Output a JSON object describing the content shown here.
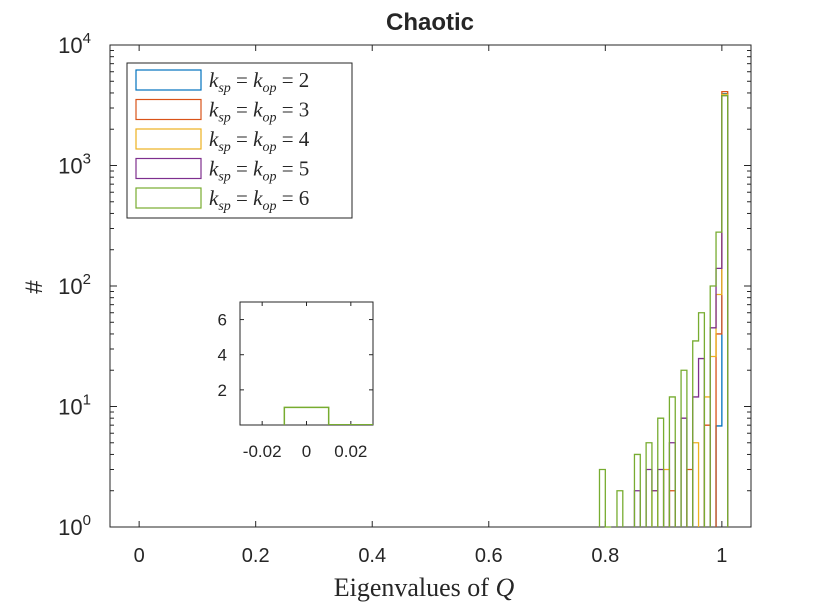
{
  "chart_data": {
    "type": "histogram-stairs",
    "title": "Chaotic",
    "xlabel_text": "Eigenvalues of",
    "xlabel_var": "Q",
    "ylabel": "#",
    "yscale": "log",
    "xlim": [
      -0.05,
      1.05
    ],
    "ylim": [
      1,
      10000
    ],
    "xticks": [
      0,
      0.2,
      0.4,
      0.6,
      0.8,
      1
    ],
    "xtick_labels": [
      "0",
      "0.2",
      "0.4",
      "0.6",
      "0.8",
      "1"
    ],
    "ytick_labels": [
      {
        "base": "10",
        "exp": "0"
      },
      {
        "base": "10",
        "exp": "1"
      },
      {
        "base": "10",
        "exp": "2"
      },
      {
        "base": "10",
        "exp": "3"
      },
      {
        "base": "10",
        "exp": "4"
      }
    ],
    "legend_location": "top-left",
    "series": [
      {
        "name": "k_sp = k_op = 2",
        "lhs": "k",
        "sub1": "sp",
        "sub2": "op",
        "val": "2",
        "color": "#0072BD",
        "steps": [
          [
            0.99,
            6.9
          ],
          [
            1.0,
            3950
          ]
        ]
      },
      {
        "name": "k_sp = k_op = 3",
        "lhs": "k",
        "sub1": "sp",
        "sub2": "op",
        "val": "3",
        "color": "#D95319",
        "steps": [
          [
            0.91,
            2
          ],
          [
            0.94,
            3
          ],
          [
            0.97,
            7
          ],
          [
            0.99,
            40
          ],
          [
            1.0,
            4100
          ]
        ]
      },
      {
        "name": "k_sp = k_op = 4",
        "lhs": "k",
        "sub1": "sp",
        "sub2": "op",
        "val": "4",
        "color": "#EDB120",
        "steps": [
          [
            0.88,
            2
          ],
          [
            0.9,
            3
          ],
          [
            0.95,
            5
          ],
          [
            0.97,
            12
          ],
          [
            0.98,
            26
          ],
          [
            0.99,
            85
          ],
          [
            1.0,
            3900
          ]
        ]
      },
      {
        "name": "k_sp = k_op = 5",
        "lhs": "k",
        "sub1": "sp",
        "sub2": "op",
        "val": "5",
        "color": "#7E2F8E",
        "steps": [
          [
            0.85,
            2
          ],
          [
            0.87,
            3
          ],
          [
            0.88,
            2
          ],
          [
            0.89,
            3
          ],
          [
            0.91,
            5
          ],
          [
            0.93,
            8
          ],
          [
            0.95,
            12
          ],
          [
            0.96,
            25
          ],
          [
            0.98,
            45
          ],
          [
            0.99,
            140
          ],
          [
            1.0,
            3800
          ]
        ]
      },
      {
        "name": "k_sp = k_op = 6",
        "lhs": "k",
        "sub1": "sp",
        "sub2": "op",
        "val": "6",
        "color": "#77AC30",
        "steps": [
          [
            0.79,
            3
          ],
          [
            0.8,
            1
          ],
          [
            0.82,
            2
          ],
          [
            0.85,
            4
          ],
          [
            0.87,
            5
          ],
          [
            0.89,
            8
          ],
          [
            0.91,
            12
          ],
          [
            0.93,
            20
          ],
          [
            0.95,
            35
          ],
          [
            0.96,
            60
          ],
          [
            0.98,
            100
          ],
          [
            0.99,
            280
          ],
          [
            1.0,
            3800
          ]
        ]
      }
    ],
    "inset": {
      "type": "histogram-stairs",
      "xlim": [
        -0.03,
        0.03
      ],
      "ylim": [
        0,
        7
      ],
      "xtick_labels": [
        "-0.02",
        "0",
        "0.02"
      ],
      "xticks": [
        -0.02,
        0,
        0.02
      ],
      "yticks": [
        2,
        4,
        6
      ],
      "ytick_labels": [
        "2",
        "4",
        "6"
      ],
      "bars": [
        {
          "x0": -0.01,
          "x1": 0.01,
          "value": 1
        }
      ]
    }
  }
}
